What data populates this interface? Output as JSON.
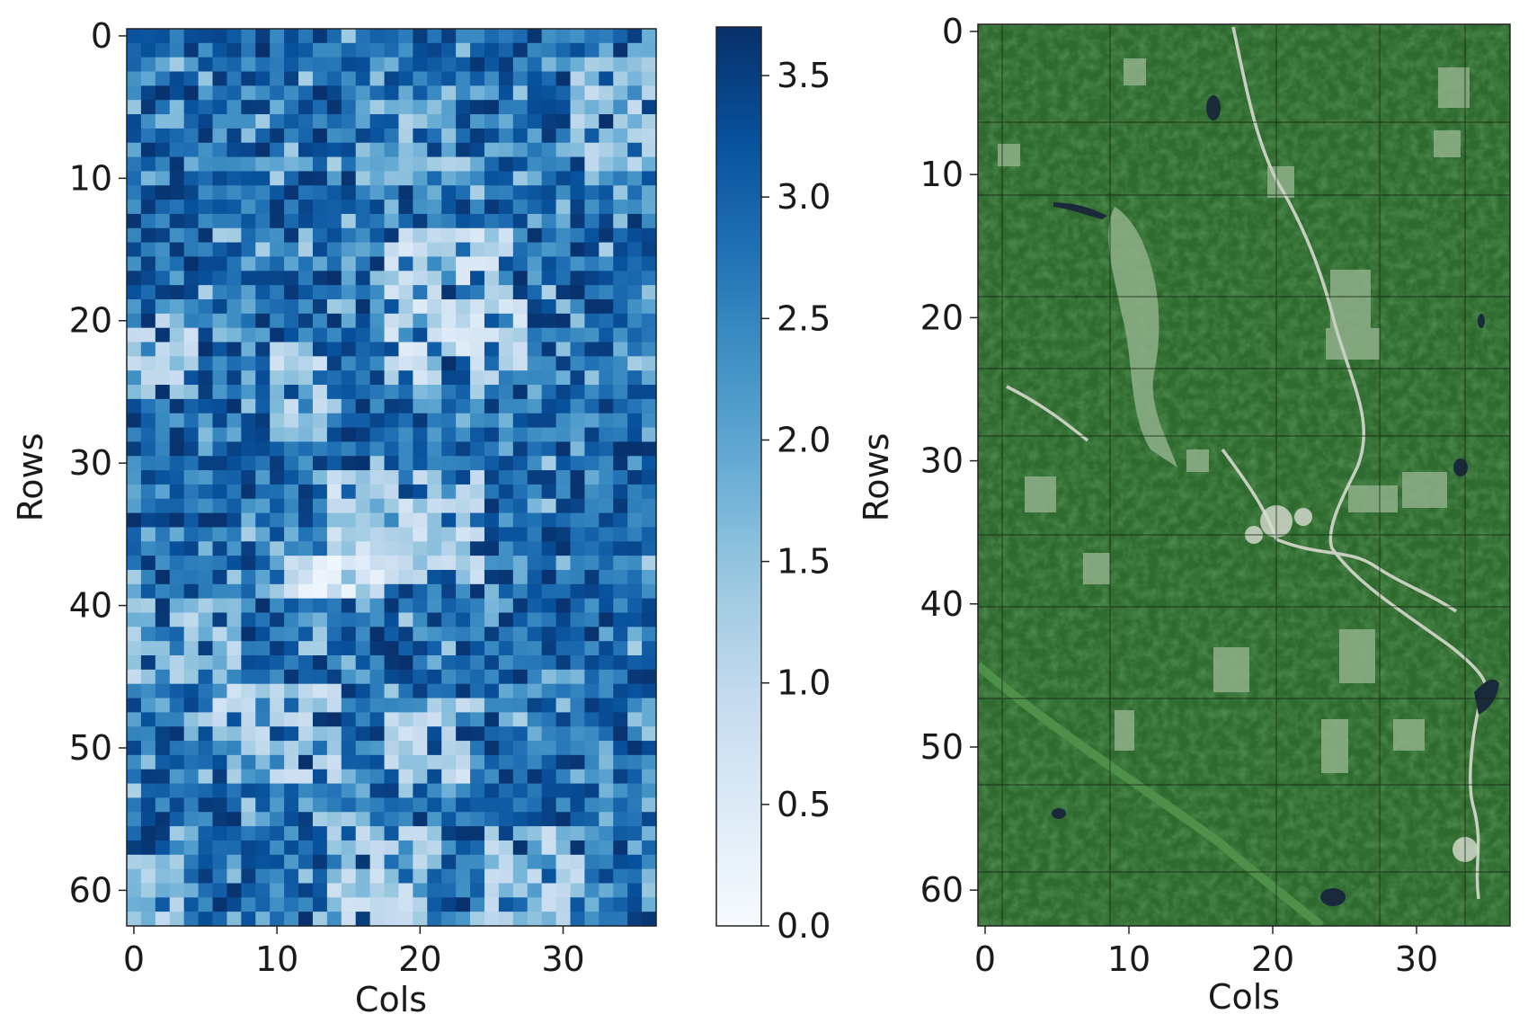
{
  "chart_data": [
    {
      "type": "heatmap",
      "title": "",
      "xlabel": "Cols",
      "ylabel": "Rows",
      "xlim": [
        -0.5,
        36.5
      ],
      "ylim": [
        62.5,
        -0.5
      ],
      "x_ticks": [
        0,
        10,
        20,
        30
      ],
      "y_ticks": [
        0,
        10,
        20,
        30,
        40,
        50,
        60
      ],
      "x_tick_labels": [
        "0",
        "10",
        "20",
        "30"
      ],
      "y_tick_labels": [
        "0",
        "10",
        "20",
        "30",
        "40",
        "50",
        "60"
      ],
      "grid_rows": 63,
      "grid_cols": 37,
      "colormap": "Blues",
      "value_range": [
        0.0,
        3.7
      ],
      "colors": {
        "low": "#f7fbff",
        "mid": "#6baed6",
        "high": "#08306b"
      },
      "colorbar": {
        "ticks": [
          0.0,
          0.5,
          1.0,
          1.5,
          2.0,
          2.5,
          3.0,
          3.5
        ],
        "tick_labels": [
          "0.0",
          "0.5",
          "1.0",
          "1.5",
          "2.0",
          "2.5",
          "3.0",
          "3.5"
        ]
      },
      "low_regions": [
        {
          "rows": [
            14,
            19
          ],
          "cols": [
            18,
            26
          ],
          "value": 1.0
        },
        {
          "rows": [
            19,
            24
          ],
          "cols": [
            18,
            27
          ],
          "value": 0.9
        },
        {
          "rows": [
            20,
            25
          ],
          "cols": [
            0,
            4
          ],
          "value": 1.2
        },
        {
          "rows": [
            22,
            28
          ],
          "cols": [
            10,
            13
          ],
          "value": 1.2
        },
        {
          "rows": [
            31,
            38
          ],
          "cols": [
            14,
            24
          ],
          "value": 1.1
        },
        {
          "rows": [
            37,
            39
          ],
          "cols": [
            11,
            17
          ],
          "value": 0.6
        },
        {
          "rows": [
            40,
            45
          ],
          "cols": [
            0,
            7
          ],
          "value": 1.4
        },
        {
          "rows": [
            46,
            52
          ],
          "cols": [
            6,
            14
          ],
          "value": 1.2
        },
        {
          "rows": [
            47,
            52
          ],
          "cols": [
            18,
            24
          ],
          "value": 1.1
        },
        {
          "rows": [
            55,
            62
          ],
          "cols": [
            14,
            21
          ],
          "value": 1.2
        },
        {
          "rows": [
            56,
            62
          ],
          "cols": [
            25,
            31
          ],
          "value": 1.3
        },
        {
          "rows": [
            1,
            9
          ],
          "cols": [
            31,
            36
          ],
          "value": 1.4
        },
        {
          "rows": [
            5,
            10
          ],
          "cols": [
            16,
            22
          ],
          "value": 1.6
        },
        {
          "rows": [
            58,
            62
          ],
          "cols": [
            0,
            3
          ],
          "value": 1.4
        }
      ]
    },
    {
      "type": "image",
      "title": "",
      "xlabel": "Cols",
      "ylabel": "Rows",
      "xlim": [
        -0.5,
        36.5
      ],
      "ylim": [
        62.5,
        -0.5
      ],
      "x_ticks": [
        0,
        10,
        20,
        30
      ],
      "y_ticks": [
        0,
        10,
        20,
        30,
        40,
        50,
        60
      ],
      "x_tick_labels": [
        "0",
        "10",
        "20",
        "30"
      ],
      "y_tick_labels": [
        "0",
        "10",
        "20",
        "30",
        "40",
        "50",
        "60"
      ],
      "content": "satellite-imagery-forest",
      "colors": {
        "forest": "#2f6b2f",
        "forest_dark": "#24552a",
        "clearing": "#8fb08a",
        "road": "#c8cfc0",
        "water": "#1b2a3a"
      }
    }
  ]
}
